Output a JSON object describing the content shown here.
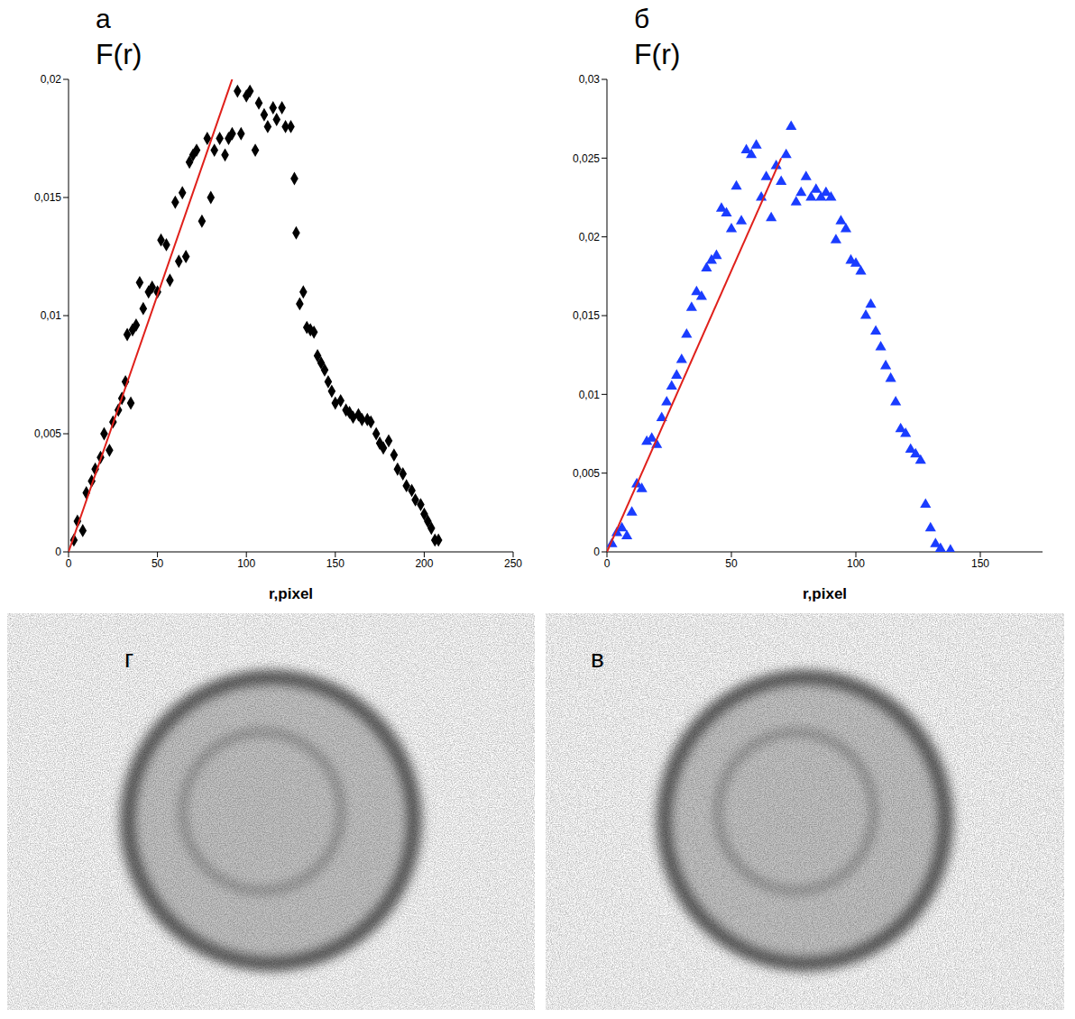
{
  "chart_data": [
    {
      "panel": "а",
      "type": "scatter",
      "x_label": "r,pixel",
      "y_label": "F(r)",
      "xlim": [
        0,
        250
      ],
      "xticks": [
        0,
        50,
        100,
        150,
        200,
        250
      ],
      "ylim": [
        0,
        0.02
      ],
      "yticks": [
        0,
        {
          "value": 0.005,
          "label": "0,005"
        },
        {
          "value": 0.01,
          "label": "0,01"
        },
        {
          "value": 0.015,
          "label": "0,015"
        },
        {
          "value": 0.02,
          "label": "0,02"
        }
      ],
      "grid": false,
      "series": [
        {
          "type": "scatter",
          "color": "#000000",
          "marker": "diamond",
          "x": [
            3,
            5,
            8,
            10,
            13,
            15,
            18,
            20,
            23,
            25,
            28,
            30,
            32,
            33,
            35,
            36,
            38,
            40,
            42,
            45,
            47,
            50,
            52,
            55,
            57,
            60,
            62,
            64,
            66,
            68,
            70,
            72,
            75,
            78,
            80,
            82,
            85,
            88,
            90,
            92,
            95,
            97,
            100,
            102,
            105,
            107,
            110,
            112,
            115,
            117,
            120,
            122,
            125,
            127,
            128,
            130,
            132,
            134,
            136,
            138,
            140,
            142,
            144,
            146,
            148,
            150,
            153,
            156,
            158,
            160,
            163,
            165,
            168,
            170,
            173,
            175,
            177,
            180,
            183,
            185,
            188,
            190,
            193,
            195,
            198,
            200,
            202,
            204,
            206,
            208
          ],
          "values": [
            0.0005,
            0.0013,
            0.0009,
            0.0025,
            0.003,
            0.0035,
            0.004,
            0.005,
            0.0043,
            0.0055,
            0.006,
            0.0065,
            0.0072,
            0.0092,
            0.0063,
            0.0094,
            0.0096,
            0.0114,
            0.0103,
            0.011,
            0.0112,
            0.011,
            0.0132,
            0.013,
            0.0115,
            0.0148,
            0.0123,
            0.0152,
            0.0125,
            0.0165,
            0.0168,
            0.017,
            0.014,
            0.0175,
            0.015,
            0.017,
            0.0175,
            0.0168,
            0.0175,
            0.0177,
            0.0195,
            0.0177,
            0.0193,
            0.0195,
            0.017,
            0.019,
            0.0185,
            0.018,
            0.0188,
            0.0183,
            0.0188,
            0.018,
            0.018,
            0.0158,
            0.0135,
            0.0105,
            0.011,
            0.0095,
            0.0094,
            0.0093,
            0.0083,
            0.008,
            0.0077,
            0.0072,
            0.0068,
            0.0063,
            0.0064,
            0.006,
            0.0059,
            0.0057,
            0.0058,
            0.0056,
            0.0056,
            0.0055,
            0.005,
            0.0046,
            0.0044,
            0.0047,
            0.0041,
            0.0035,
            0.0033,
            0.0028,
            0.0026,
            0.0022,
            0.002,
            0.0016,
            0.0013,
            0.001,
            0.0005,
            0.0005
          ]
        },
        {
          "type": "line",
          "color": "#e0201b",
          "x": [
            0,
            92
          ],
          "values": [
            0,
            0.02
          ]
        }
      ]
    },
    {
      "panel": "б",
      "type": "scatter",
      "x_label": "r,pixel",
      "y_label": "F(r)",
      "xlim": [
        0,
        175
      ],
      "xticks": [
        0,
        50,
        100,
        150
      ],
      "ylim": [
        0,
        0.03
      ],
      "yticks": [
        0,
        {
          "value": 0.005,
          "label": "0,005"
        },
        {
          "value": 0.01,
          "label": "0,01"
        },
        {
          "value": 0.015,
          "label": "0,015"
        },
        {
          "value": 0.02,
          "label": "0,02"
        },
        {
          "value": 0.025,
          "label": "0,025"
        },
        {
          "value": 0.03,
          "label": "0,03"
        }
      ],
      "grid": false,
      "series": [
        {
          "type": "scatter",
          "color": "#1a3cff",
          "marker": "triangle",
          "x": [
            2,
            4,
            6,
            8,
            10,
            12,
            14,
            16,
            18,
            20,
            22,
            24,
            26,
            28,
            30,
            32,
            34,
            36,
            38,
            40,
            42,
            44,
            46,
            48,
            50,
            52,
            54,
            56,
            58,
            60,
            62,
            64,
            66,
            68,
            70,
            72,
            74,
            76,
            78,
            80,
            82,
            84,
            86,
            88,
            90,
            92,
            94,
            96,
            98,
            100,
            102,
            104,
            106,
            108,
            110,
            112,
            114,
            116,
            118,
            120,
            122,
            124,
            126,
            128,
            130,
            132,
            134,
            138
          ],
          "values": [
            0.0005,
            0.0012,
            0.0015,
            0.001,
            0.0025,
            0.0043,
            0.004,
            0.007,
            0.0072,
            0.0068,
            0.0085,
            0.0095,
            0.0105,
            0.0112,
            0.0122,
            0.0138,
            0.0155,
            0.0165,
            0.0162,
            0.018,
            0.0185,
            0.0188,
            0.0218,
            0.0215,
            0.0205,
            0.0232,
            0.021,
            0.0255,
            0.0252,
            0.0258,
            0.0225,
            0.0238,
            0.0212,
            0.0245,
            0.0235,
            0.0252,
            0.027,
            0.0222,
            0.0228,
            0.0238,
            0.0225,
            0.023,
            0.0225,
            0.0228,
            0.0225,
            0.0198,
            0.021,
            0.0205,
            0.0185,
            0.0183,
            0.0178,
            0.015,
            0.0157,
            0.014,
            0.013,
            0.0118,
            0.011,
            0.0095,
            0.0078,
            0.0075,
            0.0065,
            0.0062,
            0.0058,
            0.003,
            0.0015,
            0.0005,
            0.0002,
            0.0001
          ]
        },
        {
          "type": "line",
          "color": "#e0201b",
          "x": [
            0,
            70
          ],
          "values": [
            0,
            0.025
          ]
        }
      ]
    }
  ],
  "images": [
    {
      "panel": "г"
    },
    {
      "panel": "в"
    }
  ]
}
